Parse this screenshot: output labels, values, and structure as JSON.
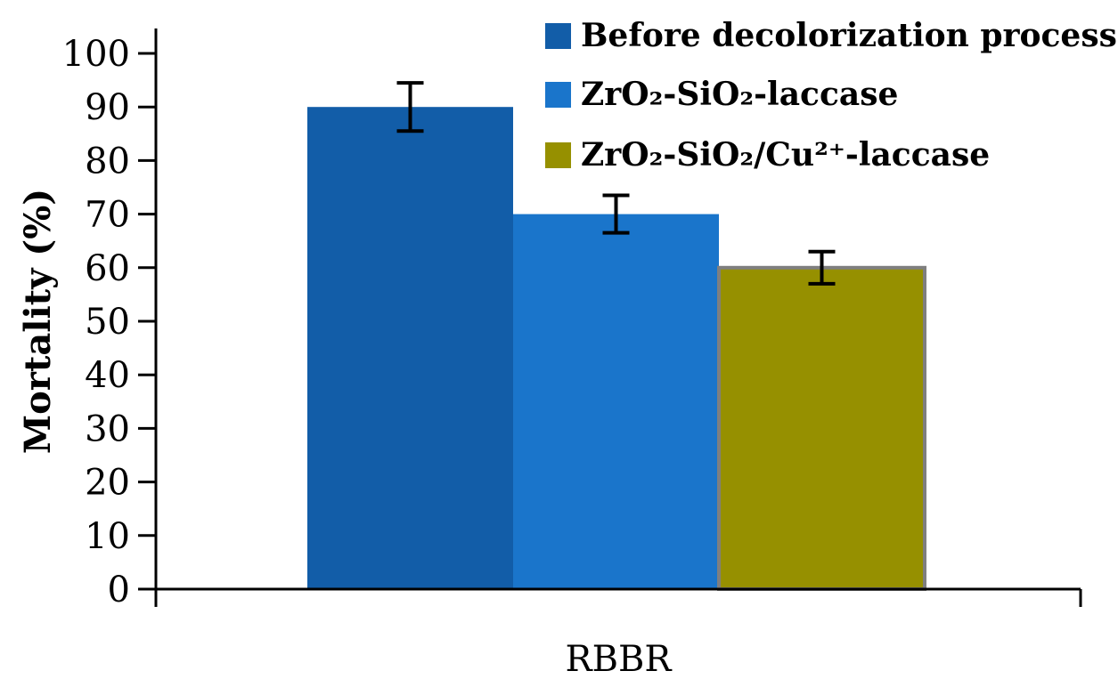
{
  "chart_data": {
    "type": "bar",
    "categories": [
      "RBBR"
    ],
    "series": [
      {
        "name": "Before decolorization process",
        "values": [
          90
        ],
        "error": [
          4.5
        ],
        "color": "#125DA8"
      },
      {
        "name": "ZrO₂-SiO₂-laccase",
        "values": [
          70
        ],
        "error": [
          3.5
        ],
        "color": "#1A75CB"
      },
      {
        "name": "ZrO₂-SiO₂/Cu²⁺-laccase",
        "values": [
          60
        ],
        "error": [
          3.0
        ],
        "color": "#969000",
        "outline": "#7f7f7f"
      }
    ],
    "title": "",
    "xlabel": "",
    "ylabel": "Mortality (%)",
    "ylim": [
      0,
      100
    ],
    "yticks": [
      "0",
      "10",
      "20",
      "30",
      "40",
      "50",
      "60",
      "70",
      "80",
      "90",
      "100"
    ],
    "grid": false,
    "legend_position": "top-right"
  }
}
